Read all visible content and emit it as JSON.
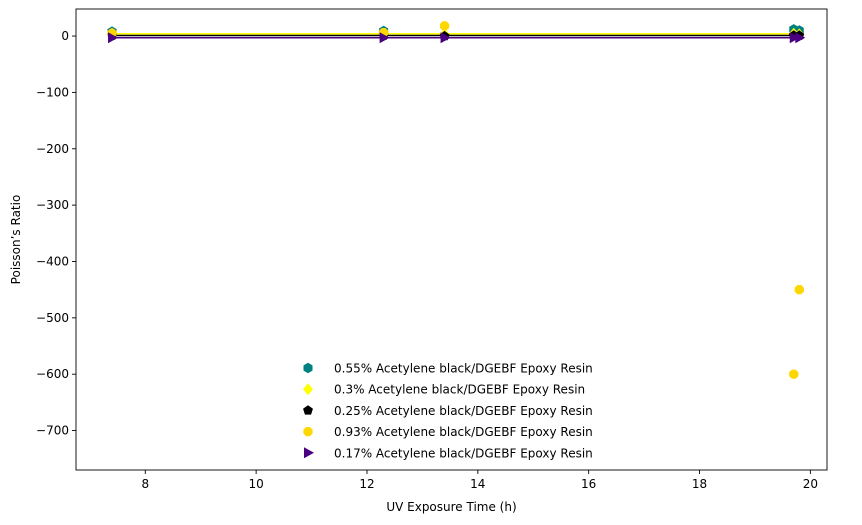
{
  "chart_data": {
    "type": "scatter",
    "title": "",
    "xlabel": "UV Exposure Time (h)",
    "ylabel": "Poisson’s Ratio",
    "xlim": [
      6.75,
      20.3
    ],
    "ylim": [
      -770,
      48
    ],
    "xticks": [
      8,
      10,
      12,
      14,
      16,
      18,
      20
    ],
    "yticks": [
      0,
      -100,
      -200,
      -300,
      -400,
      -500,
      -600,
      -700
    ],
    "grid": false,
    "legend_position": "lower-center",
    "series": [
      {
        "name": "0.55% Acetylene black/DGEBF Epoxy Resin",
        "color": "#008080",
        "marker": "hexagon",
        "x": [
          7.4,
          12.3,
          19.7,
          19.8
        ],
        "y": [
          8,
          9,
          12,
          10
        ]
      },
      {
        "name": "0.3% Acetylene black/DGEBF Epoxy Resin",
        "color": "#ffff00",
        "marker": "diamond",
        "x": [
          7.4,
          12.3,
          13.4,
          19.7,
          19.8
        ],
        "y": [
          4,
          4,
          3,
          4,
          3
        ]
      },
      {
        "name": "0.25% Acetylene black/DGEBF Epoxy Resin",
        "color": "#000000",
        "marker": "pentagon",
        "x": [
          7.4,
          12.3,
          13.4,
          19.7,
          19.8
        ],
        "y": [
          1,
          1,
          0,
          1,
          1
        ]
      },
      {
        "name": "0.93% Acetylene black/DGEBF Epoxy Resin",
        "color": "#ffd700",
        "marker": "octagon",
        "x": [
          7.4,
          12.3,
          13.4,
          19.7,
          19.8
        ],
        "y": [
          5,
          6,
          18,
          -600,
          -450
        ]
      },
      {
        "name": "0.17% Acetylene black/DGEBF Epoxy Resin",
        "color": "#4b0082",
        "marker": "triangle-right",
        "x": [
          7.4,
          12.3,
          13.4,
          19.7,
          19.8
        ],
        "y": [
          -3,
          -3,
          -3,
          -3,
          -3
        ]
      }
    ],
    "lines": [
      {
        "color": "#ffff00",
        "x": [
          7.4,
          19.8
        ],
        "y": [
          4,
          4
        ]
      },
      {
        "color": "#000000",
        "x": [
          7.4,
          19.8
        ],
        "y": [
          1,
          1
        ]
      },
      {
        "color": "#4b0082",
        "x": [
          7.4,
          19.8
        ],
        "y": [
          -3,
          -3
        ]
      }
    ]
  }
}
